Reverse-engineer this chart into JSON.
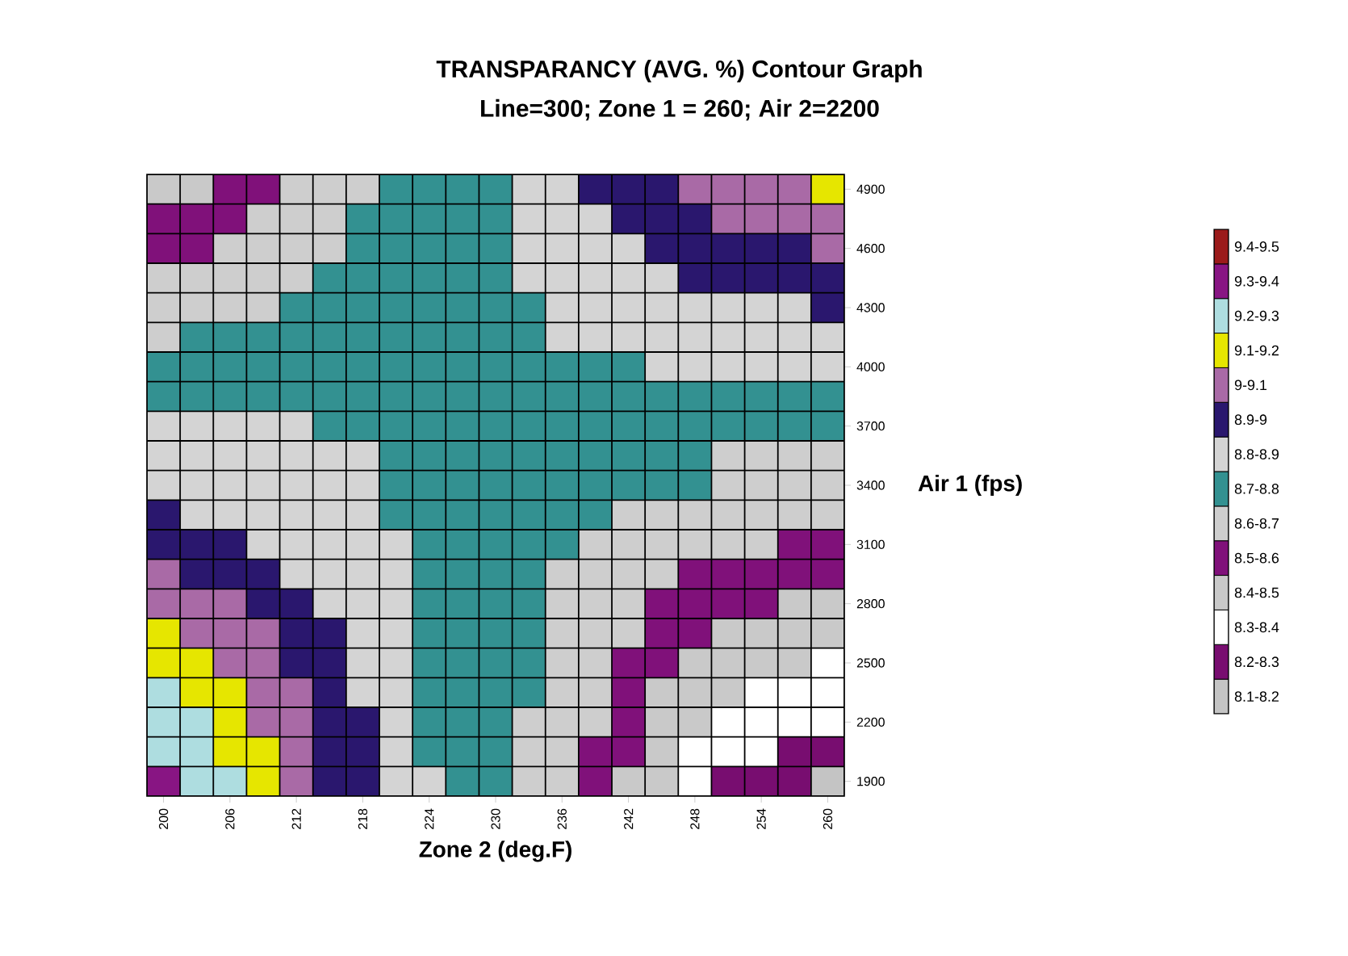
{
  "chart_data": {
    "type": "heatmap",
    "title": "TRANSPARANCY (AVG. %)  Contour Graph",
    "subtitle": "Line=300; Zone 1 = 260; Air 2=2200",
    "xlabel": "Zone 2 (deg.F)",
    "ylabel": "Air 1 (fps)",
    "categories": [
      "200",
      null,
      "206",
      null,
      "212",
      null,
      "218",
      null,
      "224",
      null,
      "230",
      null,
      "236",
      null,
      "242",
      null,
      "248",
      null,
      "254",
      null,
      "260"
    ],
    "y_categories": [
      "4900",
      null,
      "4600",
      null,
      "4300",
      null,
      "4000",
      null,
      "3700",
      null,
      "3400",
      null,
      "3100",
      null,
      "2800",
      null,
      "2500",
      null,
      "2200",
      null,
      "1900"
    ],
    "cells": [
      [
        8.45,
        8.45,
        8.55,
        8.55,
        8.65,
        8.65,
        8.65,
        8.75,
        8.75,
        8.75,
        8.75,
        8.85,
        8.85,
        8.95,
        8.95,
        8.95,
        9.05,
        9.05,
        9.05,
        9.05,
        9.15
      ],
      [
        8.55,
        8.55,
        8.55,
        8.65,
        8.65,
        8.65,
        8.75,
        8.75,
        8.75,
        8.75,
        8.75,
        8.85,
        8.85,
        8.85,
        8.95,
        8.95,
        8.95,
        9.05,
        9.05,
        9.05,
        9.05
      ],
      [
        8.55,
        8.55,
        8.65,
        8.65,
        8.65,
        8.65,
        8.75,
        8.75,
        8.75,
        8.75,
        8.75,
        8.85,
        8.85,
        8.85,
        8.85,
        8.95,
        8.95,
        8.95,
        8.95,
        8.95,
        9.05
      ],
      [
        8.65,
        8.65,
        8.65,
        8.65,
        8.65,
        8.75,
        8.75,
        8.75,
        8.75,
        8.75,
        8.75,
        8.85,
        8.85,
        8.85,
        8.85,
        8.85,
        8.95,
        8.95,
        8.95,
        8.95,
        8.95
      ],
      [
        8.65,
        8.65,
        8.65,
        8.65,
        8.75,
        8.75,
        8.75,
        8.75,
        8.75,
        8.75,
        8.75,
        8.75,
        8.85,
        8.85,
        8.85,
        8.85,
        8.85,
        8.85,
        8.85,
        8.85,
        8.95
      ],
      [
        8.65,
        8.75,
        8.75,
        8.75,
        8.75,
        8.75,
        8.75,
        8.75,
        8.75,
        8.75,
        8.75,
        8.75,
        8.85,
        8.85,
        8.85,
        8.85,
        8.85,
        8.85,
        8.85,
        8.85,
        8.85
      ],
      [
        8.75,
        8.75,
        8.75,
        8.75,
        8.75,
        8.75,
        8.75,
        8.75,
        8.75,
        8.75,
        8.75,
        8.75,
        8.75,
        8.75,
        8.75,
        8.85,
        8.85,
        8.85,
        8.85,
        8.85,
        8.85
      ],
      [
        8.75,
        8.75,
        8.75,
        8.75,
        8.75,
        8.75,
        8.75,
        8.75,
        8.75,
        8.75,
        8.75,
        8.75,
        8.75,
        8.75,
        8.75,
        8.75,
        8.75,
        8.75,
        8.75,
        8.75,
        8.75
      ],
      [
        8.85,
        8.85,
        8.85,
        8.85,
        8.85,
        8.75,
        8.75,
        8.75,
        8.75,
        8.75,
        8.75,
        8.75,
        8.75,
        8.75,
        8.75,
        8.75,
        8.75,
        8.75,
        8.75,
        8.75,
        8.75
      ],
      [
        8.85,
        8.85,
        8.85,
        8.85,
        8.85,
        8.85,
        8.85,
        8.75,
        8.75,
        8.75,
        8.75,
        8.75,
        8.75,
        8.75,
        8.75,
        8.75,
        8.75,
        8.65,
        8.65,
        8.65,
        8.65
      ],
      [
        8.85,
        8.85,
        8.85,
        8.85,
        8.85,
        8.85,
        8.85,
        8.75,
        8.75,
        8.75,
        8.75,
        8.75,
        8.75,
        8.75,
        8.75,
        8.75,
        8.75,
        8.65,
        8.65,
        8.65,
        8.65
      ],
      [
        8.95,
        8.85,
        8.85,
        8.85,
        8.85,
        8.85,
        8.85,
        8.75,
        8.75,
        8.75,
        8.75,
        8.75,
        8.75,
        8.75,
        8.65,
        8.65,
        8.65,
        8.65,
        8.65,
        8.65,
        8.65
      ],
      [
        8.95,
        8.95,
        8.95,
        8.85,
        8.85,
        8.85,
        8.85,
        8.85,
        8.75,
        8.75,
        8.75,
        8.75,
        8.75,
        8.65,
        8.65,
        8.65,
        8.65,
        8.65,
        8.65,
        8.55,
        8.55
      ],
      [
        9.05,
        8.95,
        8.95,
        8.95,
        8.85,
        8.85,
        8.85,
        8.85,
        8.75,
        8.75,
        8.75,
        8.75,
        8.65,
        8.65,
        8.65,
        8.65,
        8.55,
        8.55,
        8.55,
        8.55,
        8.55
      ],
      [
        9.05,
        9.05,
        9.05,
        8.95,
        8.95,
        8.85,
        8.85,
        8.85,
        8.75,
        8.75,
        8.75,
        8.75,
        8.65,
        8.65,
        8.65,
        8.55,
        8.55,
        8.55,
        8.55,
        8.45,
        8.45
      ],
      [
        9.15,
        9.05,
        9.05,
        9.05,
        8.95,
        8.95,
        8.85,
        8.85,
        8.75,
        8.75,
        8.75,
        8.75,
        8.65,
        8.65,
        8.65,
        8.55,
        8.55,
        8.45,
        8.45,
        8.45,
        8.45
      ],
      [
        9.15,
        9.15,
        9.05,
        9.05,
        8.95,
        8.95,
        8.85,
        8.85,
        8.75,
        8.75,
        8.75,
        8.75,
        8.65,
        8.65,
        8.55,
        8.55,
        8.45,
        8.45,
        8.45,
        8.45,
        8.35
      ],
      [
        9.25,
        9.15,
        9.15,
        9.05,
        9.05,
        8.95,
        8.85,
        8.85,
        8.75,
        8.75,
        8.75,
        8.75,
        8.65,
        8.65,
        8.55,
        8.45,
        8.45,
        8.45,
        8.35,
        8.35,
        8.35
      ],
      [
        9.25,
        9.25,
        9.15,
        9.05,
        9.05,
        8.95,
        8.95,
        8.85,
        8.75,
        8.75,
        8.75,
        8.65,
        8.65,
        8.65,
        8.55,
        8.45,
        8.45,
        8.35,
        8.35,
        8.35,
        8.35
      ],
      [
        9.25,
        9.25,
        9.15,
        9.15,
        9.05,
        8.95,
        8.95,
        8.85,
        8.75,
        8.75,
        8.75,
        8.65,
        8.65,
        8.55,
        8.55,
        8.45,
        8.35,
        8.35,
        8.35,
        8.25,
        8.25
      ],
      [
        9.35,
        9.25,
        9.25,
        9.15,
        9.05,
        8.95,
        8.95,
        8.85,
        8.85,
        8.75,
        8.75,
        8.65,
        8.65,
        8.55,
        8.45,
        8.45,
        8.35,
        8.25,
        8.25,
        8.25,
        8.15
      ]
    ],
    "clim": [
      8.1,
      9.5
    ],
    "colors": [
      "#c4c4c4",
      "#780d70",
      "#ffffff",
      "#c9c9c9",
      "#80117a",
      "#cecece",
      "#339191",
      "#d4d4d4",
      "#2a176e",
      "#a96aa6",
      "#e6e600",
      "#aedde0",
      "#881583",
      "#9b1b1b"
    ],
    "cticks": [
      {
        "value": 8.15,
        "label": "8.1-8.2"
      },
      {
        "value": 8.25,
        "label": "8.2-8.3"
      },
      {
        "value": 8.35,
        "label": "8.3-8.4"
      },
      {
        "value": 8.45,
        "label": "8.4-8.5"
      },
      {
        "value": 8.55,
        "label": "8.5-8.6"
      },
      {
        "value": 8.65,
        "label": "8.6-8.7"
      },
      {
        "value": 8.75,
        "label": "8.7-8.8"
      },
      {
        "value": 8.85,
        "label": "8.8-8.9"
      },
      {
        "value": 8.95,
        "label": "8.9-9"
      },
      {
        "value": 9.05,
        "label": "9-9.1"
      },
      {
        "value": 9.15,
        "label": "9.1-9.2"
      },
      {
        "value": 9.25,
        "label": "9.2-9.3"
      },
      {
        "value": 9.35,
        "label": "9.3-9.4"
      },
      {
        "value": 9.45,
        "label": "9.4-9.5"
      }
    ],
    "grid": true
  }
}
